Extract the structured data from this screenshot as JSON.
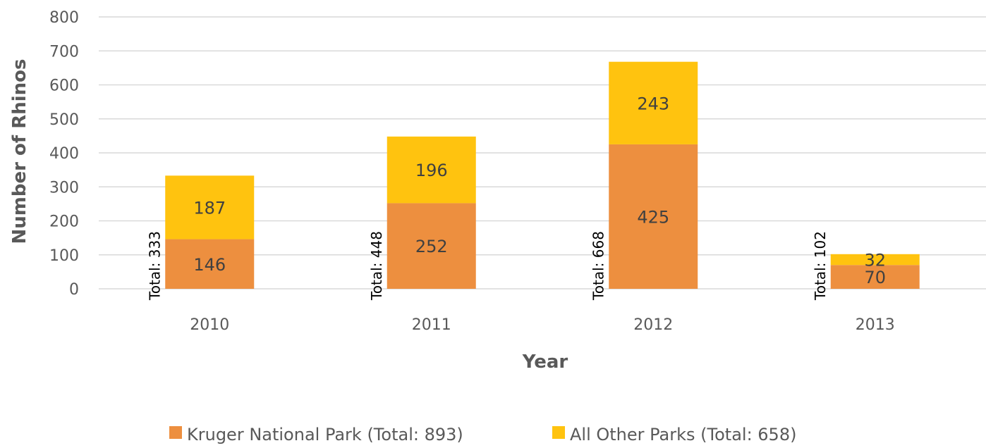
{
  "chart_data": {
    "type": "bar",
    "stacked": true,
    "categories": [
      "2010",
      "2011",
      "2012",
      "2013"
    ],
    "series": [
      {
        "name": "Kruger National Park (Total: 893)",
        "values": [
          146,
          252,
          425,
          70
        ],
        "color": "#ed8f3f"
      },
      {
        "name": "All Other Parks (Total: 658)",
        "values": [
          187,
          196,
          243,
          32
        ],
        "color": "#ffc30f"
      }
    ],
    "totals": [
      "Total: 333",
      "Total: 448",
      "Total: 668",
      "Total: 102"
    ],
    "xlabel": "Year",
    "ylabel": "Number of Rhinos",
    "ylim": [
      0,
      800
    ],
    "yticks": [
      "0",
      "100",
      "200",
      "300",
      "400",
      "500",
      "600",
      "700",
      "800"
    ],
    "grid": true,
    "legend_position": "bottom"
  }
}
